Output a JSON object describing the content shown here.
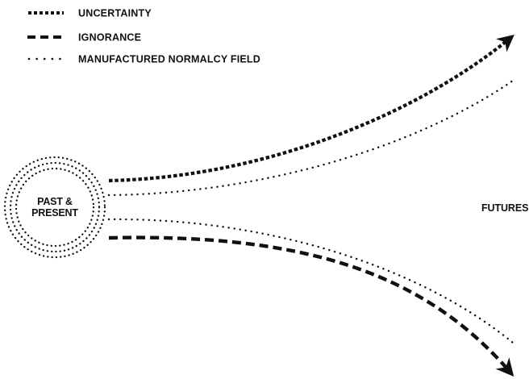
{
  "legend": {
    "uncertainty_label": "UNCERTAINTY",
    "ignorance_label": "IGNORANCE",
    "normalcy_label": "MANUFACTURED NORMALCY FIELD"
  },
  "center": {
    "line1": "PAST &",
    "line2": "PRESENT"
  },
  "futures_label": "FUTURES",
  "colors": {
    "ink": "#111111",
    "background": "#ffffff"
  },
  "icons": {
    "uncertainty_swatch": "short-dashed-line",
    "ignorance_swatch": "long-dashed-line",
    "normalcy_swatch": "dotted-line",
    "arrowhead": "arrowhead-icon",
    "center_rings": "dotted-concentric-rings"
  }
}
